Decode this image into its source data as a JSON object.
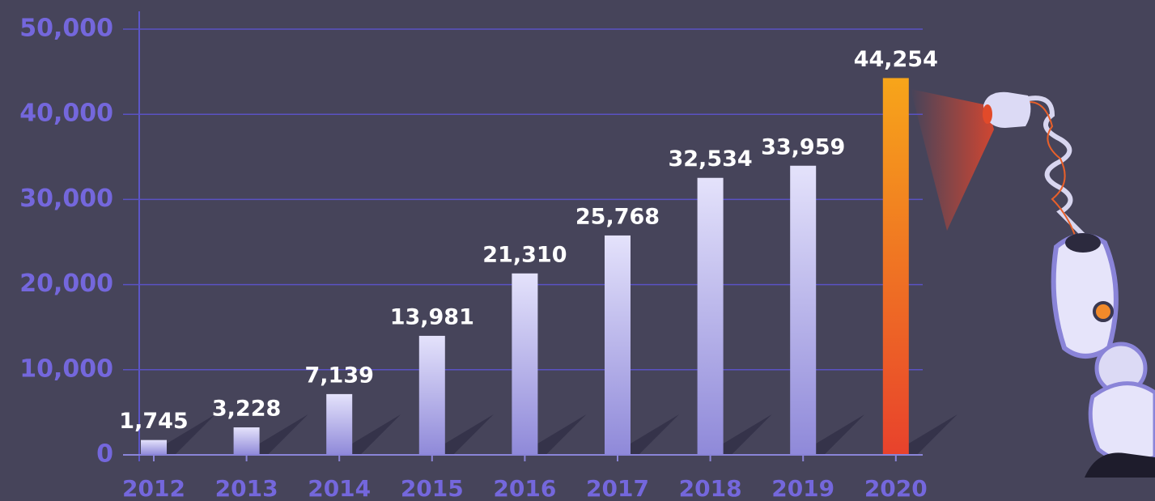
{
  "chart_data": {
    "type": "bar",
    "categories": [
      "2012",
      "2013",
      "2014",
      "2015",
      "2016",
      "2017",
      "2018",
      "2019",
      "2020"
    ],
    "values": [
      1745,
      3228,
      7139,
      13981,
      21310,
      25768,
      32534,
      33959,
      44254
    ],
    "value_labels": [
      "1,745",
      "3,228",
      "7,139",
      "13,981",
      "21,310",
      "25,768",
      "32,534",
      "33,959",
      "44,254"
    ],
    "colors": [
      "#e4e2fb",
      "#e4e2fb",
      "#e4e2fb",
      "#e4e2fb",
      "#e4e2fb",
      "#e4e2fb",
      "#e4e2fb",
      "#e4e2fb",
      "#f7a51a"
    ],
    "ylim": [
      0,
      50000
    ],
    "yticks": [
      0,
      {
        "value": 10000,
        "label": "10,000"
      },
      {
        "value": 20000,
        "label": "20,000"
      },
      {
        "value": 30000,
        "label": "30,000"
      },
      {
        "value": 40000,
        "label": "40,000"
      },
      {
        "value": 50000,
        "label": "50,000"
      }
    ],
    "grid": true
  }
}
